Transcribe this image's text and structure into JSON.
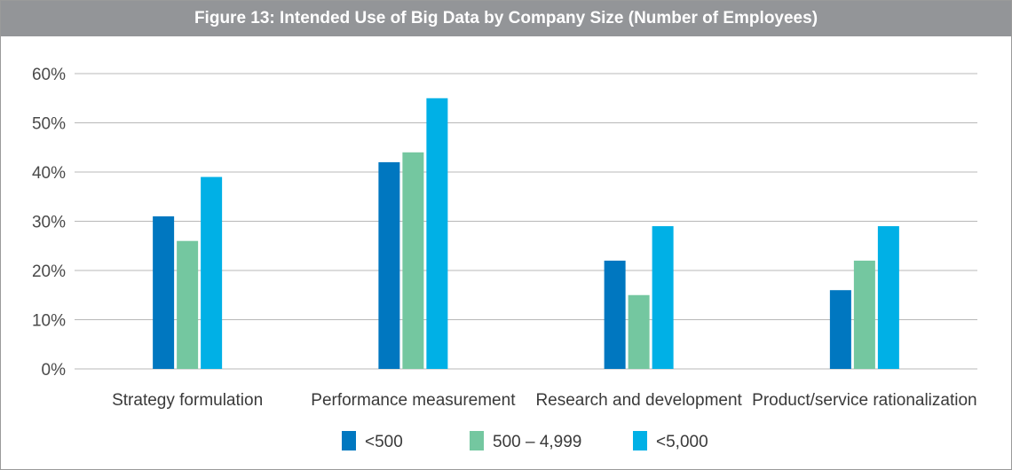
{
  "title": "Figure 13: Intended Use of Big Data by Company Size (Number of Employees)",
  "colors": {
    "title_bar": "#939598",
    "grid": "#b8b8b8",
    "series": [
      "#0077c0",
      "#74c7a0",
      "#00b0e6"
    ]
  },
  "chart_data": {
    "type": "bar",
    "title": "Figure 13: Intended Use of Big Data by Company Size (Number of Employees)",
    "categories": [
      "Strategy formulation",
      "Performance measurement",
      "Research and development",
      "Product/service rationalization"
    ],
    "series": [
      {
        "name": "<500",
        "values": [
          31,
          42,
          22,
          16
        ]
      },
      {
        "name": "500 – 4,999",
        "values": [
          26,
          44,
          15,
          22
        ]
      },
      {
        "name": "<5,000",
        "values": [
          39,
          55,
          29,
          29
        ]
      }
    ],
    "ylim": [
      0,
      60
    ],
    "yticks": [
      "0%",
      "10%",
      "20%",
      "30%",
      "40%",
      "50%",
      "60%"
    ],
    "grid": true,
    "legend_position": "bottom"
  }
}
